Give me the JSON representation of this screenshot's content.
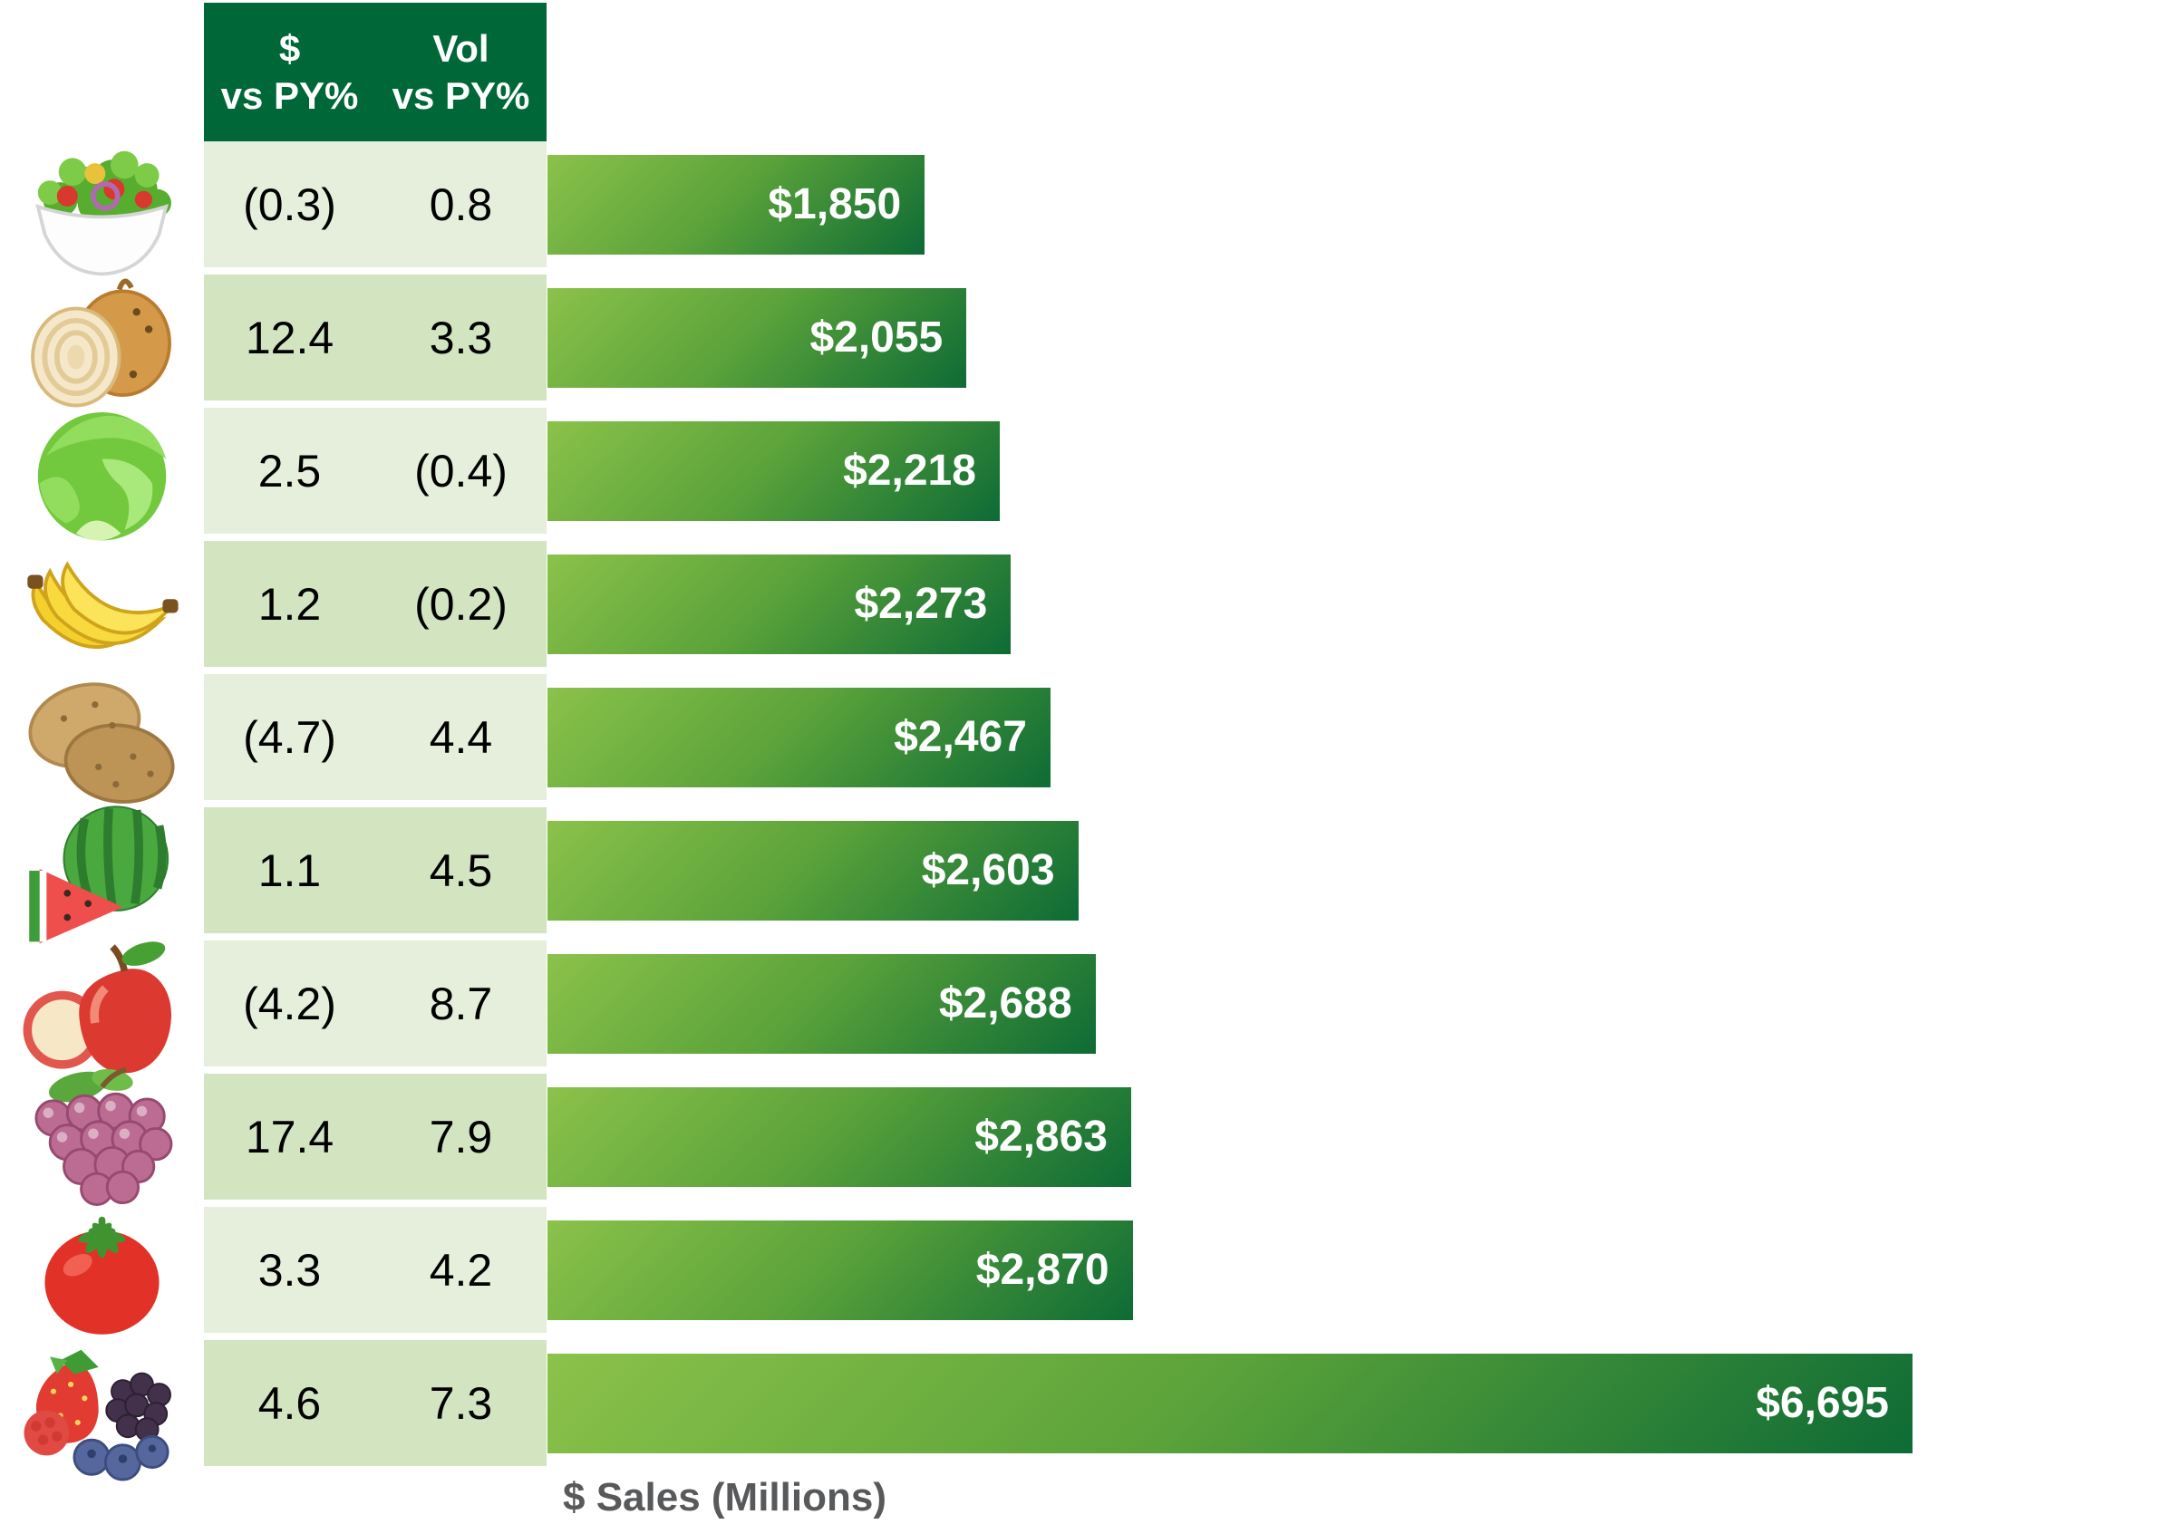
{
  "table": {
    "header": {
      "col1": {
        "line1": "$",
        "line2": "vs PY%"
      },
      "col2": {
        "line1": "Vol",
        "line2": "vs PY%"
      }
    }
  },
  "rows": [
    {
      "item": "Salad",
      "icon": "salad-icon",
      "dollar_vs_py": "(0.3)",
      "vol_vs_py": "0.8",
      "sales_label": "$1,850",
      "sales_millions": 1850
    },
    {
      "item": "Onions",
      "icon": "onion-icon",
      "dollar_vs_py": "12.4",
      "vol_vs_py": "3.3",
      "sales_label": "$2,055",
      "sales_millions": 2055
    },
    {
      "item": "Lettuce",
      "icon": "lettuce-icon",
      "dollar_vs_py": "2.5",
      "vol_vs_py": "(0.4)",
      "sales_label": "$2,218",
      "sales_millions": 2218
    },
    {
      "item": "Bananas",
      "icon": "banana-icon",
      "dollar_vs_py": "1.2",
      "vol_vs_py": "(0.2)",
      "sales_label": "$2,273",
      "sales_millions": 2273
    },
    {
      "item": "Potatoes",
      "icon": "potato-icon",
      "dollar_vs_py": "(4.7)",
      "vol_vs_py": "4.4",
      "sales_label": "$2,467",
      "sales_millions": 2467
    },
    {
      "item": "Watermelon",
      "icon": "watermelon-icon",
      "dollar_vs_py": "1.1",
      "vol_vs_py": "4.5",
      "sales_label": "$2,603",
      "sales_millions": 2603
    },
    {
      "item": "Apples",
      "icon": "apple-icon",
      "dollar_vs_py": "(4.2)",
      "vol_vs_py": "8.7",
      "sales_label": "$2,688",
      "sales_millions": 2688
    },
    {
      "item": "Grapes",
      "icon": "grapes-icon",
      "dollar_vs_py": "17.4",
      "vol_vs_py": "7.9",
      "sales_label": "$2,863",
      "sales_millions": 2863
    },
    {
      "item": "Tomatoes",
      "icon": "tomato-icon",
      "dollar_vs_py": "3.3",
      "vol_vs_py": "4.2",
      "sales_label": "$2,870",
      "sales_millions": 2870
    },
    {
      "item": "Berries",
      "icon": "berries-icon",
      "dollar_vs_py": "4.6",
      "vol_vs_py": "7.3",
      "sales_label": "$6,695",
      "sales_millions": 6695
    }
  ],
  "xlabel": "$ Sales (Millions)",
  "colors": {
    "header_green": "#006838",
    "row_shade_light": "#e6efdc",
    "row_shade_dark": "#d2e4c0",
    "bar_gradient_light": "#8bc24a",
    "bar_gradient_dark": "#0d6b35",
    "bar_label_text": "#ffffff",
    "axis_label_gray": "#58595b"
  },
  "chart_data": {
    "type": "bar",
    "orientation": "horizontal",
    "title": "",
    "xlabel": "$ Sales (Millions)",
    "ylabel": "",
    "xlim": [
      0,
      6695
    ],
    "grid": false,
    "legend_position": "none",
    "categories": [
      "Salad",
      "Onions",
      "Lettuce",
      "Bananas",
      "Potatoes",
      "Watermelon",
      "Apples",
      "Grapes",
      "Tomatoes",
      "Berries"
    ],
    "series": [
      {
        "name": "$ vs PY%",
        "values": [
          -0.3,
          12.4,
          2.5,
          1.2,
          -4.7,
          1.1,
          -4.2,
          17.4,
          3.3,
          4.6
        ]
      },
      {
        "name": "Vol vs PY%",
        "values": [
          0.8,
          3.3,
          -0.4,
          -0.2,
          4.4,
          4.5,
          8.7,
          7.9,
          4.2,
          7.3
        ]
      },
      {
        "name": "$ Sales (Millions)",
        "values": [
          1850,
          2055,
          2218,
          2273,
          2467,
          2603,
          2688,
          2863,
          2870,
          6695
        ]
      }
    ],
    "notes": "Negative percentages are displayed in parentheses; sales value labels are printed right-aligned inside each bar."
  }
}
